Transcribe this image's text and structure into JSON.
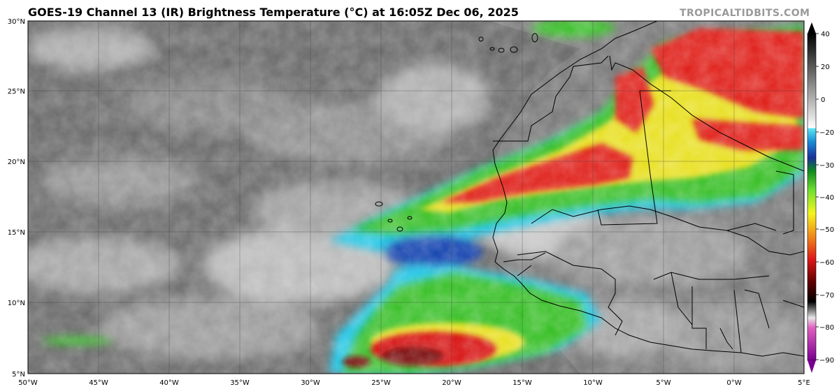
{
  "title": "GOES-19 Channel 13 (IR) Brightness Temperature (°C) at 16:05Z Dec 06, 2025",
  "credit": "TROPICALTIDBITS.COM",
  "colors": {
    "ocean_base": "#6e6e6e",
    "cold_red": "#e0231c",
    "green": "#3bc02a",
    "yellow": "#e8e020",
    "blue": "#1844b0",
    "cyan": "#28c8e8",
    "border": "#000000"
  },
  "map": {
    "lat_ticks": [
      "30°N",
      "25°N",
      "20°N",
      "15°N",
      "10°N",
      "5°N"
    ],
    "lon_ticks": [
      "50°W",
      "45°W",
      "40°W",
      "35°W",
      "30°W",
      "25°W",
      "20°W",
      "15°W",
      "10°W",
      "5°W",
      "0°W",
      "5°E"
    ]
  },
  "colorbar": {
    "labels": [
      "40",
      "20",
      "0",
      "−20",
      "−30",
      "−40",
      "−50",
      "−60",
      "−70",
      "−80",
      "−90"
    ]
  }
}
